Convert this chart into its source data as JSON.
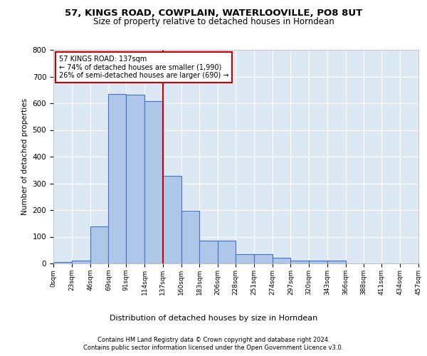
{
  "title1": "57, KINGS ROAD, COWPLAIN, WATERLOOVILLE, PO8 8UT",
  "title2": "Size of property relative to detached houses in Horndean",
  "xlabel": "Distribution of detached houses by size in Horndean",
  "ylabel": "Number of detached properties",
  "footer1": "Contains HM Land Registry data © Crown copyright and database right 2024.",
  "footer2": "Contains public sector information licensed under the Open Government Licence v3.0.",
  "annotation_line1": "57 KINGS ROAD: 137sqm",
  "annotation_line2": "← 74% of detached houses are smaller (1,990)",
  "annotation_line3": "26% of semi-detached houses are larger (690) →",
  "bar_values": [
    5,
    10,
    140,
    635,
    632,
    608,
    328,
    198,
    85,
    85,
    35,
    35,
    22,
    10,
    12,
    10,
    0,
    0,
    0,
    0
  ],
  "bin_edges": [
    0,
    23,
    46,
    69,
    91,
    114,
    137,
    160,
    183,
    206,
    228,
    251,
    274,
    297,
    320,
    343,
    366,
    388,
    411,
    434,
    457
  ],
  "tick_labels": [
    "0sqm",
    "23sqm",
    "46sqm",
    "69sqm",
    "91sqm",
    "114sqm",
    "137sqm",
    "160sqm",
    "183sqm",
    "206sqm",
    "228sqm",
    "251sqm",
    "274sqm",
    "297sqm",
    "320sqm",
    "343sqm",
    "366sqm",
    "388sqm",
    "411sqm",
    "434sqm",
    "457sqm"
  ],
  "bar_color": "#aec6e8",
  "bar_edge_color": "#4472c4",
  "ref_line_x": 137,
  "ref_line_color": "#cc0000",
  "bg_color": "#dde8f5",
  "grid_color": "#ffffff",
  "annotation_box_color": "#cc0000",
  "ylim": [
    0,
    800
  ],
  "yticks": [
    0,
    100,
    200,
    300,
    400,
    500,
    600,
    700,
    800
  ]
}
